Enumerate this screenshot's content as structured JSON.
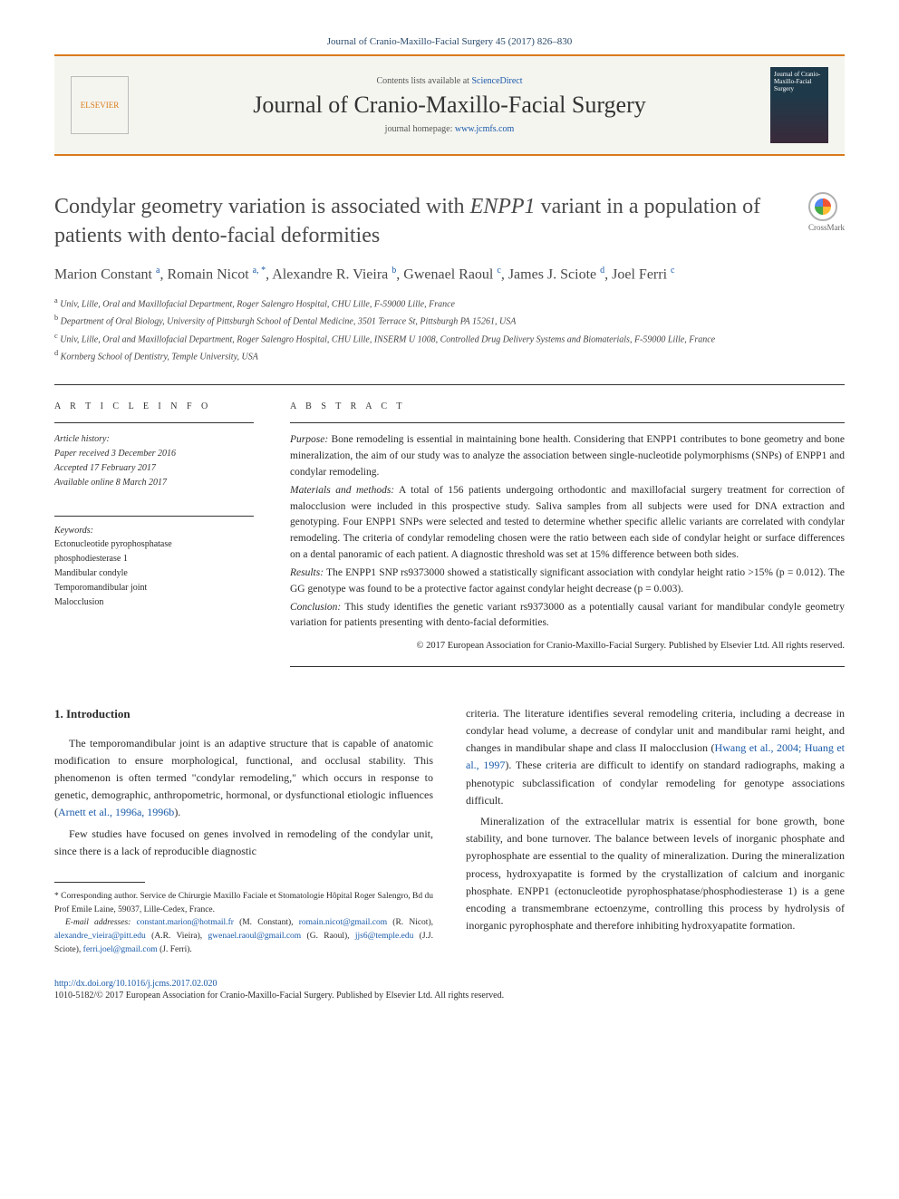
{
  "citation": "Journal of Cranio-Maxillo-Facial Surgery 45 (2017) 826–830",
  "header": {
    "contents_prefix": "Contents lists available at ",
    "contents_link": "ScienceDirect",
    "journal_name": "Journal of Cranio-Maxillo-Facial Surgery",
    "homepage_prefix": "journal homepage: ",
    "homepage_link": "www.jcmfs.com",
    "publisher": "ELSEVIER",
    "cover_text": "Journal of Cranio-Maxillo-Facial Surgery"
  },
  "crossmark_label": "CrossMark",
  "title_pre": "Condylar geometry variation is associated with ",
  "title_italic": "ENPP1",
  "title_post": " variant in a population of patients with dento-facial deformities",
  "authors_html": "Marion Constant <sup>a</sup>, Romain Nicot <sup>a, *</sup>, Alexandre R. Vieira <sup>b</sup>, Gwenael Raoul <sup>c</sup>, James J. Sciote <sup>d</sup>, Joel Ferri <sup>c</sup>",
  "affiliations": [
    "a Univ, Lille, Oral and Maxillofacial Department, Roger Salengro Hospital, CHU Lille, F-59000 Lille, France",
    "b Department of Oral Biology, University of Pittsburgh School of Dental Medicine, 3501 Terrace St, Pittsburgh PA 15261, USA",
    "c Univ, Lille, Oral and Maxillofacial Department, Roger Salengro Hospital, CHU Lille, INSERM U 1008, Controlled Drug Delivery Systems and Biomaterials, F-59000 Lille, France",
    "d Kornberg School of Dentistry, Temple University, USA"
  ],
  "article_info_label": "A R T I C L E  I N F O",
  "abstract_label": "A B S T R A C T",
  "history_label": "Article history:",
  "history": [
    "Paper received 3 December 2016",
    "Accepted 17 February 2017",
    "Available online 8 March 2017"
  ],
  "keywords_label": "Keywords:",
  "keywords": [
    "Ectonucleotide pyrophosphatase",
    "phosphodiesterase 1",
    "Mandibular condyle",
    "Temporomandibular joint",
    "Malocclusion"
  ],
  "abstract": {
    "purpose_label": "Purpose:",
    "purpose": " Bone remodeling is essential in maintaining bone health. Considering that ENPP1 contributes to bone geometry and bone mineralization, the aim of our study was to analyze the association between single-nucleotide polymorphisms (SNPs) of ENPP1 and condylar remodeling.",
    "mm_label": "Materials and methods:",
    "mm": " A total of 156 patients undergoing orthodontic and maxillofacial surgery treatment for correction of malocclusion were included in this prospective study. Saliva samples from all subjects were used for DNA extraction and genotyping. Four ENPP1 SNPs were selected and tested to determine whether specific allelic variants are correlated with condylar remodeling. The criteria of condylar remodeling chosen were the ratio between each side of condylar height or surface differences on a dental panoramic of each patient. A diagnostic threshold was set at 15% difference between both sides.",
    "results_label": "Results:",
    "results": " The ENPP1 SNP rs9373000 showed a statistically significant association with condylar height ratio >15% (p = 0.012). The GG genotype was found to be a protective factor against condylar height decrease (p = 0.003).",
    "conclusion_label": "Conclusion:",
    "conclusion": " This study identifies the genetic variant rs9373000 as a potentially causal variant for mandibular condyle geometry variation for patients presenting with dento-facial deformities.",
    "copyright": "© 2017 European Association for Cranio-Maxillo-Facial Surgery. Published by Elsevier Ltd. All rights reserved."
  },
  "body": {
    "heading": "1. Introduction",
    "left_p1": "The temporomandibular joint is an adaptive structure that is capable of anatomic modification to ensure morphological, functional, and occlusal stability. This phenomenon is often termed \"condylar remodeling,\" which occurs in response to genetic, demographic, anthropometric, hormonal, or dysfunctional etiologic influences (",
    "left_p1_ref": "Arnett et al., 1996a, 1996b",
    "left_p1_end": ").",
    "left_p2": "Few studies have focused on genes involved in remodeling of the condylar unit, since there is a lack of reproducible diagnostic",
    "right_p1": "criteria. The literature identifies several remodeling criteria, including a decrease in condylar head volume, a decrease of condylar unit and mandibular rami height, and changes in mandibular shape and class II malocclusion (",
    "right_p1_ref": "Hwang et al., 2004; Huang et al., 1997",
    "right_p1_end": "). These criteria are difficult to identify on standard radiographs, making a phenotypic subclassification of condylar remodeling for genotype associations difficult.",
    "right_p2": "Mineralization of the extracellular matrix is essential for bone growth, bone stability, and bone turnover. The balance between levels of inorganic phosphate and pyrophosphate are essential to the quality of mineralization. During the mineralization process, hydroxyapatite is formed by the crystallization of calcium and inorganic phosphate. ENPP1 (ectonucleotide pyrophosphatase/phosphodiesterase 1) is a gene encoding a transmembrane ectoenzyme, controlling this process by hydrolysis of inorganic pyrophosphate and therefore inhibiting hydroxyapatite formation."
  },
  "footnotes": {
    "corresp": "* Corresponding author. Service de Chirurgie Maxillo Faciale et Stomatologie Hôpital Roger Salengro, Bd du Prof Emile Laine, 59037, Lille-Cedex, France.",
    "emails_label": "E-mail addresses:",
    "emails": " constant.marion@hotmail.fr (M. Constant), romain.nicot@gmail.com (R. Nicot), alexandre_vieira@pitt.edu (A.R. Vieira), gwenael.raoul@gmail.com (G. Raoul), jjs6@temple.edu (J.J. Sciote), ferri.joel@gmail.com (J. Ferri)."
  },
  "doi": "http://dx.doi.org/10.1016/j.jcms.2017.02.020",
  "issn_copy": "1010-5182/© 2017 European Association for Cranio-Maxillo-Facial Surgery. Published by Elsevier Ltd. All rights reserved."
}
